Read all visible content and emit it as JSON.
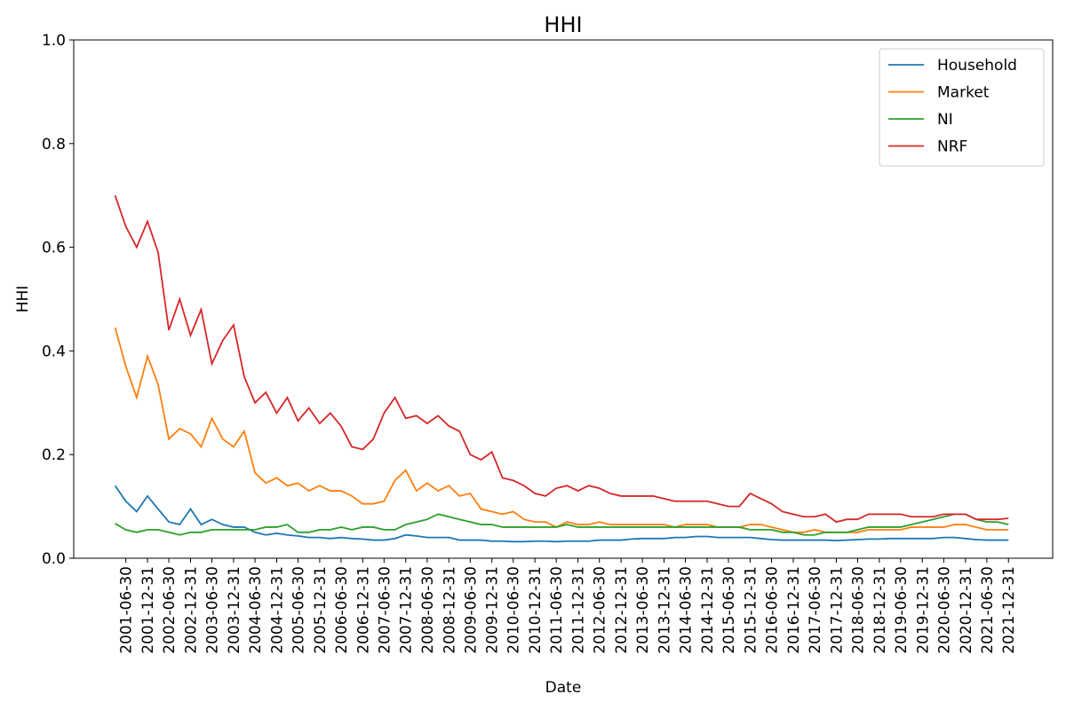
{
  "chart_data": {
    "type": "line",
    "title": "HHI",
    "x_label": "Date",
    "y_label": "HHI",
    "x": [
      "2001-03-31",
      "2001-06-30",
      "2001-09-30",
      "2001-12-31",
      "2002-03-31",
      "2002-06-30",
      "2002-09-30",
      "2002-12-31",
      "2003-03-31",
      "2003-06-30",
      "2003-09-30",
      "2003-12-31",
      "2004-03-31",
      "2004-06-30",
      "2004-09-30",
      "2004-12-31",
      "2005-03-31",
      "2005-06-30",
      "2005-09-30",
      "2005-12-31",
      "2006-03-31",
      "2006-06-30",
      "2006-09-30",
      "2006-12-31",
      "2007-03-31",
      "2007-06-30",
      "2007-09-30",
      "2007-12-31",
      "2008-03-31",
      "2008-06-30",
      "2008-09-30",
      "2008-12-31",
      "2009-03-31",
      "2009-06-30",
      "2009-09-30",
      "2009-12-31",
      "2010-03-31",
      "2010-06-30",
      "2010-09-30",
      "2010-12-31",
      "2011-03-31",
      "2011-06-30",
      "2011-09-30",
      "2011-12-31",
      "2012-03-31",
      "2012-06-30",
      "2012-09-30",
      "2012-12-31",
      "2013-03-31",
      "2013-06-30",
      "2013-09-30",
      "2013-12-31",
      "2014-03-31",
      "2014-06-30",
      "2014-09-30",
      "2014-12-31",
      "2015-03-31",
      "2015-06-30",
      "2015-09-30",
      "2015-12-31",
      "2016-03-31",
      "2016-06-30",
      "2016-09-30",
      "2016-12-31",
      "2017-03-31",
      "2017-06-30",
      "2017-09-30",
      "2017-12-31",
      "2018-03-31",
      "2018-06-30",
      "2018-09-30",
      "2018-12-31",
      "2019-03-31",
      "2019-06-30",
      "2019-09-30",
      "2019-12-31",
      "2020-03-31",
      "2020-06-30",
      "2020-09-30",
      "2020-12-31",
      "2021-03-31",
      "2021-06-30",
      "2021-09-30",
      "2021-12-31"
    ],
    "series": [
      {
        "name": "Household",
        "color": "#1f77b4",
        "values": [
          0.14,
          0.11,
          0.09,
          0.12,
          0.095,
          0.07,
          0.065,
          0.095,
          0.065,
          0.075,
          0.065,
          0.06,
          0.06,
          0.05,
          0.045,
          0.048,
          0.045,
          0.043,
          0.04,
          0.04,
          0.038,
          0.04,
          0.038,
          0.037,
          0.035,
          0.035,
          0.038,
          0.045,
          0.043,
          0.04,
          0.04,
          0.04,
          0.035,
          0.035,
          0.035,
          0.033,
          0.033,
          0.032,
          0.032,
          0.033,
          0.033,
          0.032,
          0.033,
          0.033,
          0.033,
          0.035,
          0.035,
          0.035,
          0.037,
          0.038,
          0.038,
          0.038,
          0.04,
          0.04,
          0.042,
          0.042,
          0.04,
          0.04,
          0.04,
          0.04,
          0.038,
          0.036,
          0.035,
          0.035,
          0.035,
          0.035,
          0.035,
          0.034,
          0.035,
          0.036,
          0.037,
          0.037,
          0.038,
          0.038,
          0.038,
          0.038,
          0.038,
          0.04,
          0.04,
          0.038,
          0.036,
          0.035,
          0.035,
          0.035
        ]
      },
      {
        "name": "Market",
        "color": "#ff7f0e",
        "values": [
          0.445,
          0.37,
          0.31,
          0.39,
          0.335,
          0.23,
          0.25,
          0.24,
          0.215,
          0.27,
          0.23,
          0.215,
          0.245,
          0.165,
          0.145,
          0.155,
          0.14,
          0.145,
          0.13,
          0.14,
          0.13,
          0.13,
          0.12,
          0.105,
          0.105,
          0.11,
          0.15,
          0.17,
          0.13,
          0.145,
          0.13,
          0.14,
          0.12,
          0.125,
          0.095,
          0.09,
          0.085,
          0.09,
          0.075,
          0.07,
          0.07,
          0.06,
          0.07,
          0.065,
          0.065,
          0.07,
          0.065,
          0.065,
          0.065,
          0.065,
          0.065,
          0.065,
          0.06,
          0.065,
          0.065,
          0.065,
          0.06,
          0.06,
          0.06,
          0.065,
          0.065,
          0.06,
          0.055,
          0.05,
          0.05,
          0.055,
          0.05,
          0.05,
          0.05,
          0.05,
          0.055,
          0.055,
          0.055,
          0.055,
          0.06,
          0.06,
          0.06,
          0.06,
          0.065,
          0.065,
          0.06,
          0.055,
          0.055,
          0.055
        ]
      },
      {
        "name": "NI",
        "color": "#2ca02c",
        "values": [
          0.067,
          0.055,
          0.05,
          0.055,
          0.055,
          0.05,
          0.045,
          0.05,
          0.05,
          0.055,
          0.055,
          0.055,
          0.055,
          0.055,
          0.06,
          0.06,
          0.065,
          0.05,
          0.05,
          0.055,
          0.055,
          0.06,
          0.055,
          0.06,
          0.06,
          0.055,
          0.055,
          0.065,
          0.07,
          0.075,
          0.085,
          0.08,
          0.075,
          0.07,
          0.065,
          0.065,
          0.06,
          0.06,
          0.06,
          0.06,
          0.06,
          0.06,
          0.065,
          0.06,
          0.06,
          0.06,
          0.06,
          0.06,
          0.06,
          0.06,
          0.06,
          0.06,
          0.06,
          0.06,
          0.06,
          0.06,
          0.06,
          0.06,
          0.06,
          0.055,
          0.055,
          0.055,
          0.05,
          0.05,
          0.045,
          0.045,
          0.05,
          0.05,
          0.05,
          0.055,
          0.06,
          0.06,
          0.06,
          0.06,
          0.065,
          0.07,
          0.075,
          0.08,
          0.085,
          0.085,
          0.075,
          0.07,
          0.07,
          0.065
        ]
      },
      {
        "name": "NRF",
        "color": "#d62728",
        "values": [
          0.7,
          0.64,
          0.6,
          0.65,
          0.59,
          0.44,
          0.5,
          0.43,
          0.48,
          0.375,
          0.42,
          0.45,
          0.35,
          0.3,
          0.32,
          0.28,
          0.31,
          0.265,
          0.29,
          0.26,
          0.28,
          0.255,
          0.215,
          0.21,
          0.23,
          0.28,
          0.31,
          0.27,
          0.275,
          0.26,
          0.275,
          0.255,
          0.245,
          0.2,
          0.19,
          0.205,
          0.155,
          0.15,
          0.14,
          0.125,
          0.12,
          0.135,
          0.14,
          0.13,
          0.14,
          0.135,
          0.125,
          0.12,
          0.12,
          0.12,
          0.12,
          0.115,
          0.11,
          0.11,
          0.11,
          0.11,
          0.105,
          0.1,
          0.1,
          0.125,
          0.115,
          0.105,
          0.09,
          0.085,
          0.08,
          0.08,
          0.085,
          0.07,
          0.075,
          0.075,
          0.085,
          0.085,
          0.085,
          0.085,
          0.08,
          0.08,
          0.08,
          0.085,
          0.085,
          0.085,
          0.075,
          0.075,
          0.075,
          0.077
        ]
      }
    ],
    "xlim": [
      "2000-04-14",
      "2023-01-10"
    ],
    "xticks": [
      "2001-06-30",
      "2001-12-31",
      "2002-06-30",
      "2002-12-31",
      "2003-06-30",
      "2003-12-31",
      "2004-06-30",
      "2004-12-31",
      "2005-06-30",
      "2005-12-31",
      "2006-06-30",
      "2006-12-31",
      "2007-06-30",
      "2007-12-31",
      "2008-06-30",
      "2008-12-31",
      "2009-06-30",
      "2009-12-31",
      "2010-06-30",
      "2010-12-31",
      "2011-06-30",
      "2011-12-31",
      "2012-06-30",
      "2012-12-31",
      "2013-06-30",
      "2013-12-31",
      "2014-06-30",
      "2014-12-31",
      "2015-06-30",
      "2015-12-31",
      "2016-06-30",
      "2016-12-31",
      "2017-06-30",
      "2017-12-31",
      "2018-06-30",
      "2018-12-31",
      "2019-06-30",
      "2019-12-31",
      "2020-06-30",
      "2020-12-31",
      "2021-06-30",
      "2021-12-31"
    ],
    "ylim": [
      0,
      1
    ],
    "yticks": [
      {
        "value": 0,
        "label": "0.0"
      },
      0.2,
      0.4,
      0.6,
      0.8,
      {
        "value": 1,
        "label": "1.0"
      }
    ],
    "grid": false,
    "legend": "upper right"
  }
}
